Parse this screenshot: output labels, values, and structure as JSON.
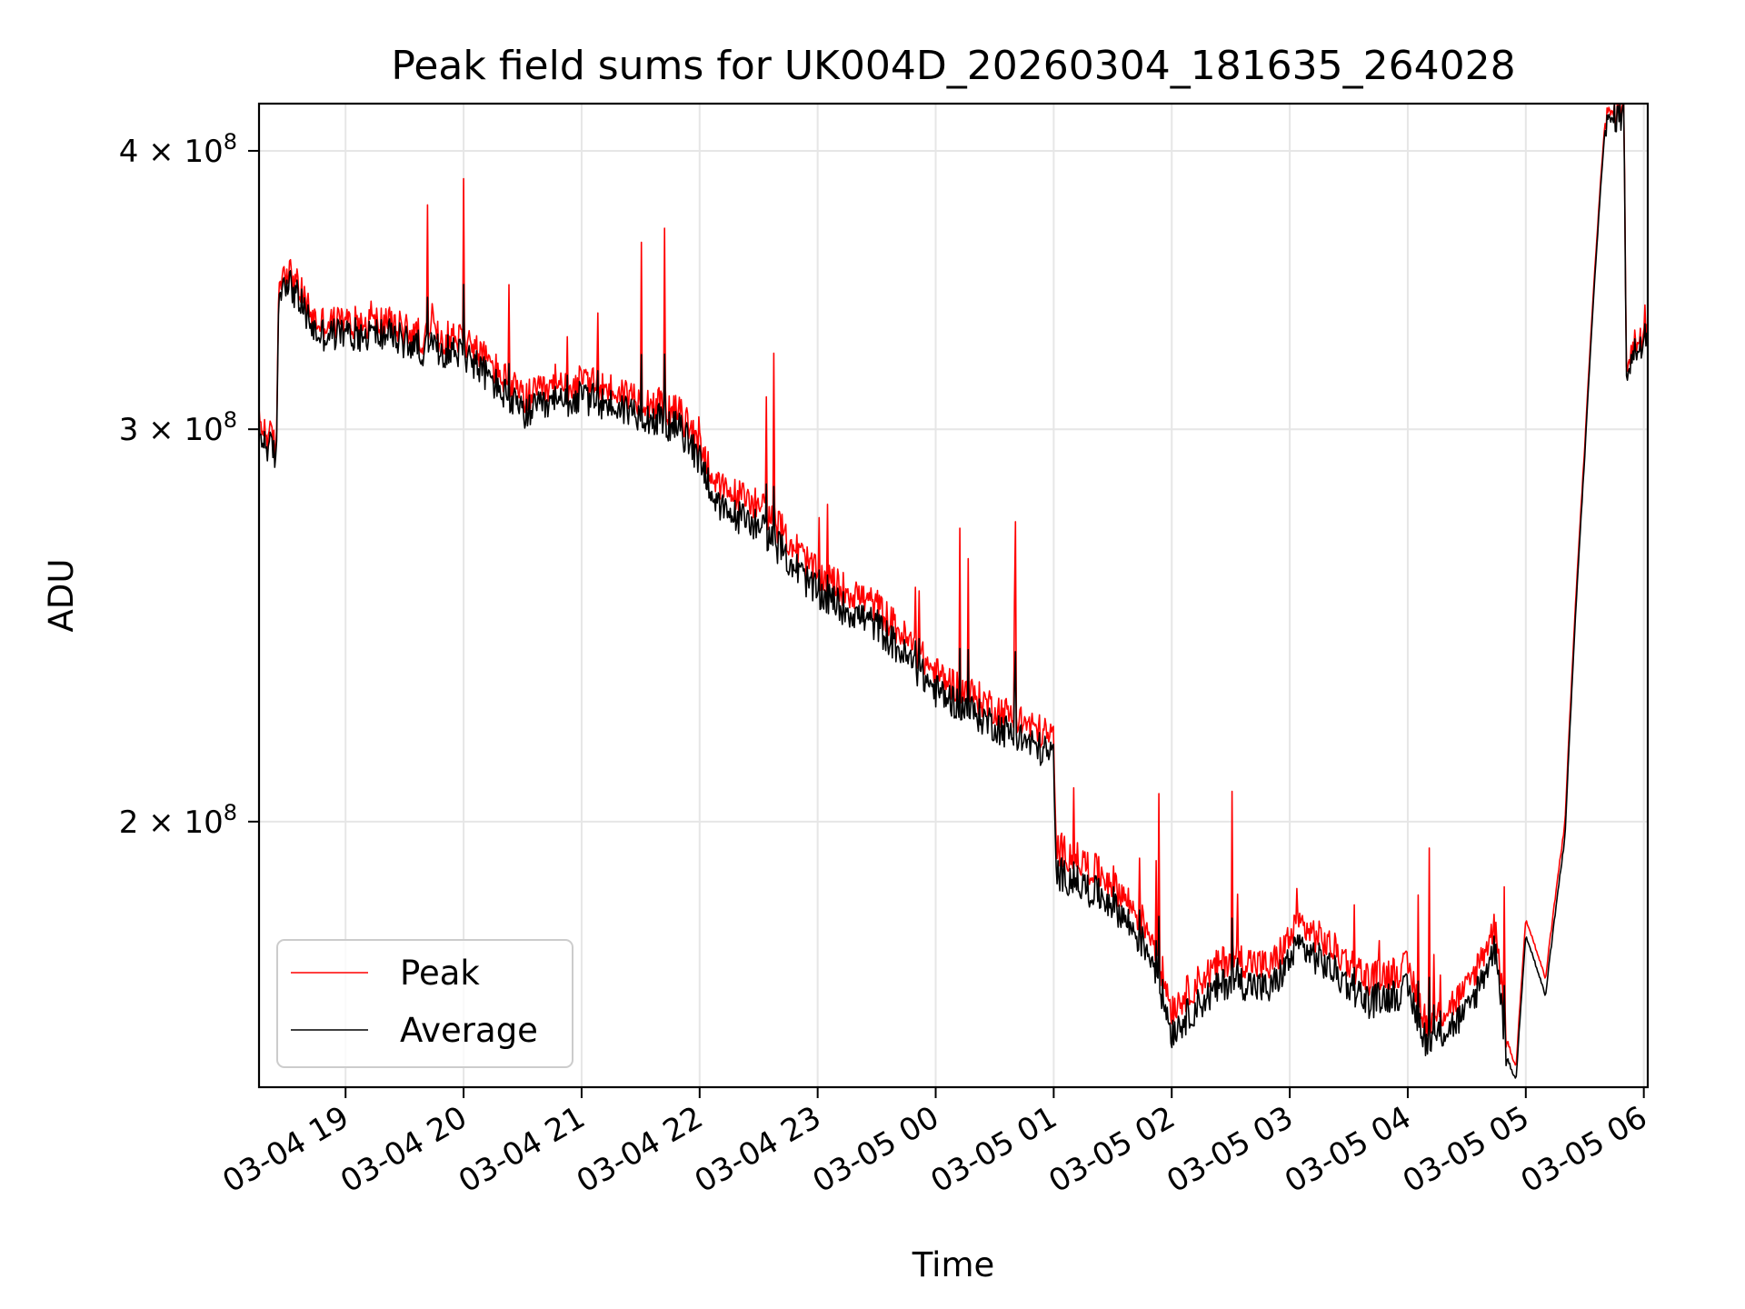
{
  "chart_data": {
    "type": "line",
    "title": "Peak field sums for UK004D_20260304_181635_264028",
    "xlabel": "Time",
    "ylabel": "ADU",
    "yscale": "log",
    "grid": true,
    "legend_position": "lower-left",
    "xlim": [
      "03-04 18:16",
      "03-05 06:02"
    ],
    "ylim": [
      152000000,
      420000000
    ],
    "x_ticks": [
      "03-04 19",
      "03-04 20",
      "03-04 21",
      "03-04 22",
      "03-04 23",
      "03-05 00",
      "03-05 01",
      "03-05 02",
      "03-05 03",
      "03-05 04",
      "03-05 05",
      "03-05 06"
    ],
    "y_ticks": [
      {
        "label_base": "2 × 10",
        "label_exp": "8",
        "value": 200000000
      },
      {
        "label_base": "3 × 10",
        "label_exp": "8",
        "value": 300000000
      },
      {
        "label_base": "4 × 10",
        "label_exp": "8",
        "value": 400000000
      }
    ],
    "series": [
      {
        "name": "Peak",
        "color": "#ff0000",
        "x": [
          "03-04 18:16",
          "03-04 18:25",
          "03-04 18:26",
          "03-04 18:30",
          "03-04 18:45",
          "03-04 19:00",
          "03-04 19:20",
          "03-04 19:40",
          "03-04 20:00",
          "03-04 20:15",
          "03-04 20:30",
          "03-04 21:00",
          "03-04 21:30",
          "03-04 21:50",
          "03-04 22:00",
          "03-04 22:10",
          "03-04 22:30",
          "03-04 23:00",
          "03-04 23:30",
          "03-05 00:00",
          "03-05 00:30",
          "03-05 01:00",
          "03-05 01:01",
          "03-05 01:30",
          "03-05 01:50",
          "03-05 02:00",
          "03-05 02:15",
          "03-05 02:30",
          "03-05 02:50",
          "03-05 03:05",
          "03-05 03:20",
          "03-05 03:40",
          "03-05 04:00",
          "03-05 04:10",
          "03-05 04:30",
          "03-05 04:45",
          "03-05 04:50",
          "03-05 04:55",
          "03-05 05:00",
          "03-05 05:10",
          "03-05 05:20",
          "03-05 05:30",
          "03-05 05:40",
          "03-05 05:45",
          "03-05 05:50",
          "03-05 05:51",
          "03-05 06:02"
        ],
        "y": [
          302000000,
          295000000,
          350000000,
          355000000,
          335000000,
          335000000,
          335000000,
          330000000,
          330000000,
          320000000,
          310000000,
          315000000,
          310000000,
          305000000,
          295000000,
          282000000,
          278000000,
          258000000,
          250000000,
          233000000,
          225000000,
          218000000,
          195000000,
          188000000,
          178000000,
          165000000,
          170000000,
          174000000,
          172000000,
          180000000,
          176000000,
          170000000,
          172000000,
          162000000,
          168000000,
          180000000,
          160000000,
          155000000,
          181000000,
          170000000,
          200000000,
          295000000,
          410000000,
          418000000,
          418000000,
          322000000,
          336000000
        ]
      },
      {
        "name": "Average",
        "color": "#000000",
        "x": [
          "03-04 18:16",
          "03-04 18:25",
          "03-04 18:26",
          "03-04 18:30",
          "03-04 18:45",
          "03-04 19:00",
          "03-04 19:20",
          "03-04 19:40",
          "03-04 20:00",
          "03-04 20:15",
          "03-04 20:30",
          "03-04 21:00",
          "03-04 21:30",
          "03-04 21:50",
          "03-04 22:00",
          "03-04 22:10",
          "03-04 22:30",
          "03-04 23:00",
          "03-04 23:30",
          "03-05 00:00",
          "03-05 00:30",
          "03-05 01:00",
          "03-05 01:01",
          "03-05 01:30",
          "03-05 01:50",
          "03-05 02:00",
          "03-05 02:15",
          "03-05 02:30",
          "03-05 02:50",
          "03-05 03:05",
          "03-05 03:20",
          "03-05 03:40",
          "03-05 04:00",
          "03-05 04:10",
          "03-05 04:30",
          "03-05 04:45",
          "03-05 04:50",
          "03-05 04:55",
          "03-05 05:00",
          "03-05 05:10",
          "03-05 05:20",
          "03-05 05:30",
          "03-05 05:40",
          "03-05 05:45",
          "03-05 05:50",
          "03-05 05:51",
          "03-05 06:02"
        ],
        "y": [
          298000000,
          292000000,
          346000000,
          351000000,
          331000000,
          331000000,
          331000000,
          326000000,
          325000000,
          315000000,
          305000000,
          310000000,
          305000000,
          300000000,
          291000000,
          276000000,
          272000000,
          253000000,
          245000000,
          229000000,
          221000000,
          214000000,
          190000000,
          184000000,
          174000000,
          161000000,
          166000000,
          170000000,
          168000000,
          176000000,
          172000000,
          166000000,
          168000000,
          159000000,
          164000000,
          176000000,
          157000000,
          153000000,
          178000000,
          167000000,
          197000000,
          292000000,
          407000000,
          415000000,
          415000000,
          319000000,
          333000000
        ]
      }
    ]
  }
}
